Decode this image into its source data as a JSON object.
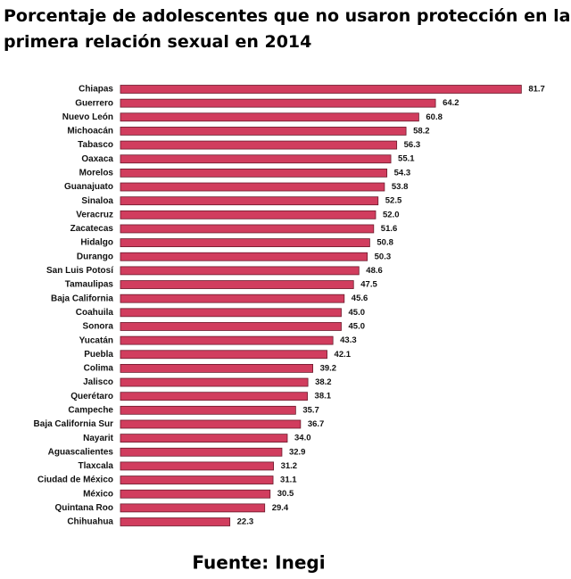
{
  "chart_data": {
    "type": "hbar",
    "title": "Porcentaje de adolescentes que no usaron protección en la",
    "subtitle": "primera relación sexual en 2014",
    "source": "Fuente: Inegi",
    "color": "#d13d5e",
    "categories": [
      "Chiapas",
      "Guerrero",
      "Nuevo León",
      "Michoacán",
      "Tabasco",
      "Oaxaca",
      "Morelos",
      "Guanajuato",
      "Sinaloa",
      "Veracruz",
      "Zacatecas",
      "Hidalgo",
      "Durango",
      "San Luis Potosí",
      "Tamaulipas",
      "Baja California",
      "Coahuila",
      "Sonora",
      "Yucatán",
      "Puebla",
      "Colima",
      "Jalisco",
      "Querétaro",
      "Campeche",
      "Baja California Sur",
      "Nayarit",
      "Aguascalientes",
      "Tlaxcala",
      "Ciudad de México",
      "México",
      "Quintana Roo",
      "Chihuahua"
    ],
    "values": [
      81.7,
      64.2,
      60.8,
      58.2,
      56.3,
      55.1,
      54.3,
      53.8,
      52.5,
      52.0,
      51.6,
      50.8,
      50.3,
      48.6,
      47.5,
      45.6,
      45.0,
      45.0,
      43.3,
      42.1,
      39.2,
      38.2,
      38.1,
      35.7,
      36.7,
      34.0,
      32.9,
      31.2,
      31.1,
      30.5,
      29.4,
      22.3
    ],
    "value_labels": [
      "81.7",
      "64.2",
      "60.8",
      "58.2",
      "56.3",
      "55.1",
      "54.3",
      "53.8",
      "52.5",
      "52.0",
      "51.6",
      "50.8",
      "50.3",
      "48.6",
      "47.5",
      "45.6",
      "45.0",
      "45.0",
      "43.3",
      "42.1",
      "39.2",
      "38.2",
      "38.1",
      "35.7",
      "36.7",
      "34.0",
      "32.9",
      "31.2",
      "31.1",
      "30.5",
      "29.4",
      "22.3"
    ]
  }
}
